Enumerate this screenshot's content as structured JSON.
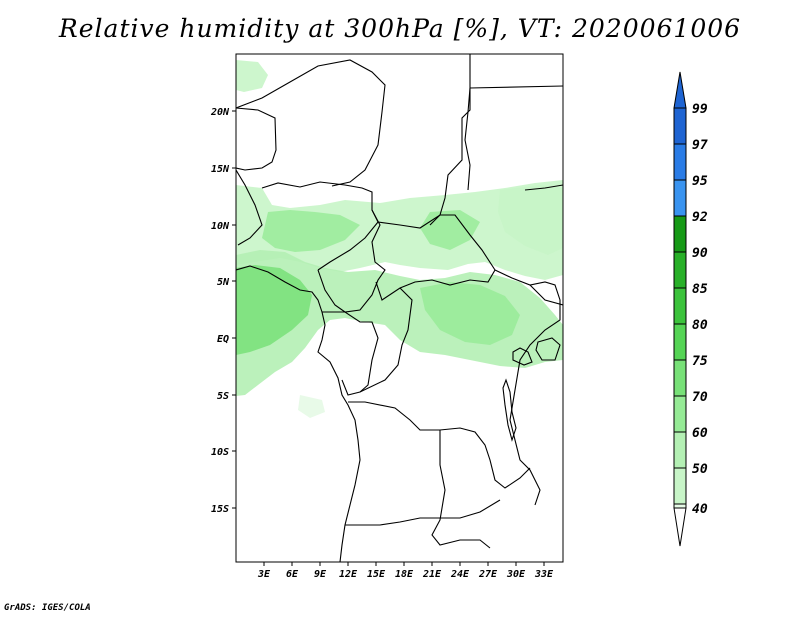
{
  "title": "Relative humidity at 300hPa [%], VT: 2020061006",
  "footer": "GrADS: IGES/COLA",
  "y_axis": {
    "labels": [
      "20N",
      "15N",
      "10N",
      "5N",
      "EQ",
      "5S",
      "10S",
      "15S"
    ],
    "lat_values": [
      20,
      15,
      10,
      5,
      0,
      -5,
      -10,
      -15
    ],
    "range": [
      -20,
      24.5
    ]
  },
  "x_axis": {
    "labels": [
      "3E",
      "6E",
      "9E",
      "12E",
      "15E",
      "18E",
      "21E",
      "24E",
      "27E",
      "30E",
      "33E"
    ],
    "lon_values": [
      3,
      6,
      9,
      12,
      15,
      18,
      21,
      24,
      27,
      30,
      33
    ],
    "range": [
      0,
      35
    ]
  },
  "colorbar": {
    "levels": [
      "40",
      "50",
      "60",
      "70",
      "75",
      "80",
      "85",
      "90",
      "92",
      "95",
      "97",
      "99"
    ],
    "colors": [
      "#e6fae6",
      "#c8f5c8",
      "#b4f0b4",
      "#96eb96",
      "#78e178",
      "#55d455",
      "#3cc33c",
      "#28b028",
      "#169a16",
      "#3a94f0",
      "#2a7ce6",
      "#1e64d2"
    ],
    "under_color": "#ffffff",
    "over_color": "#1e64d2"
  }
}
